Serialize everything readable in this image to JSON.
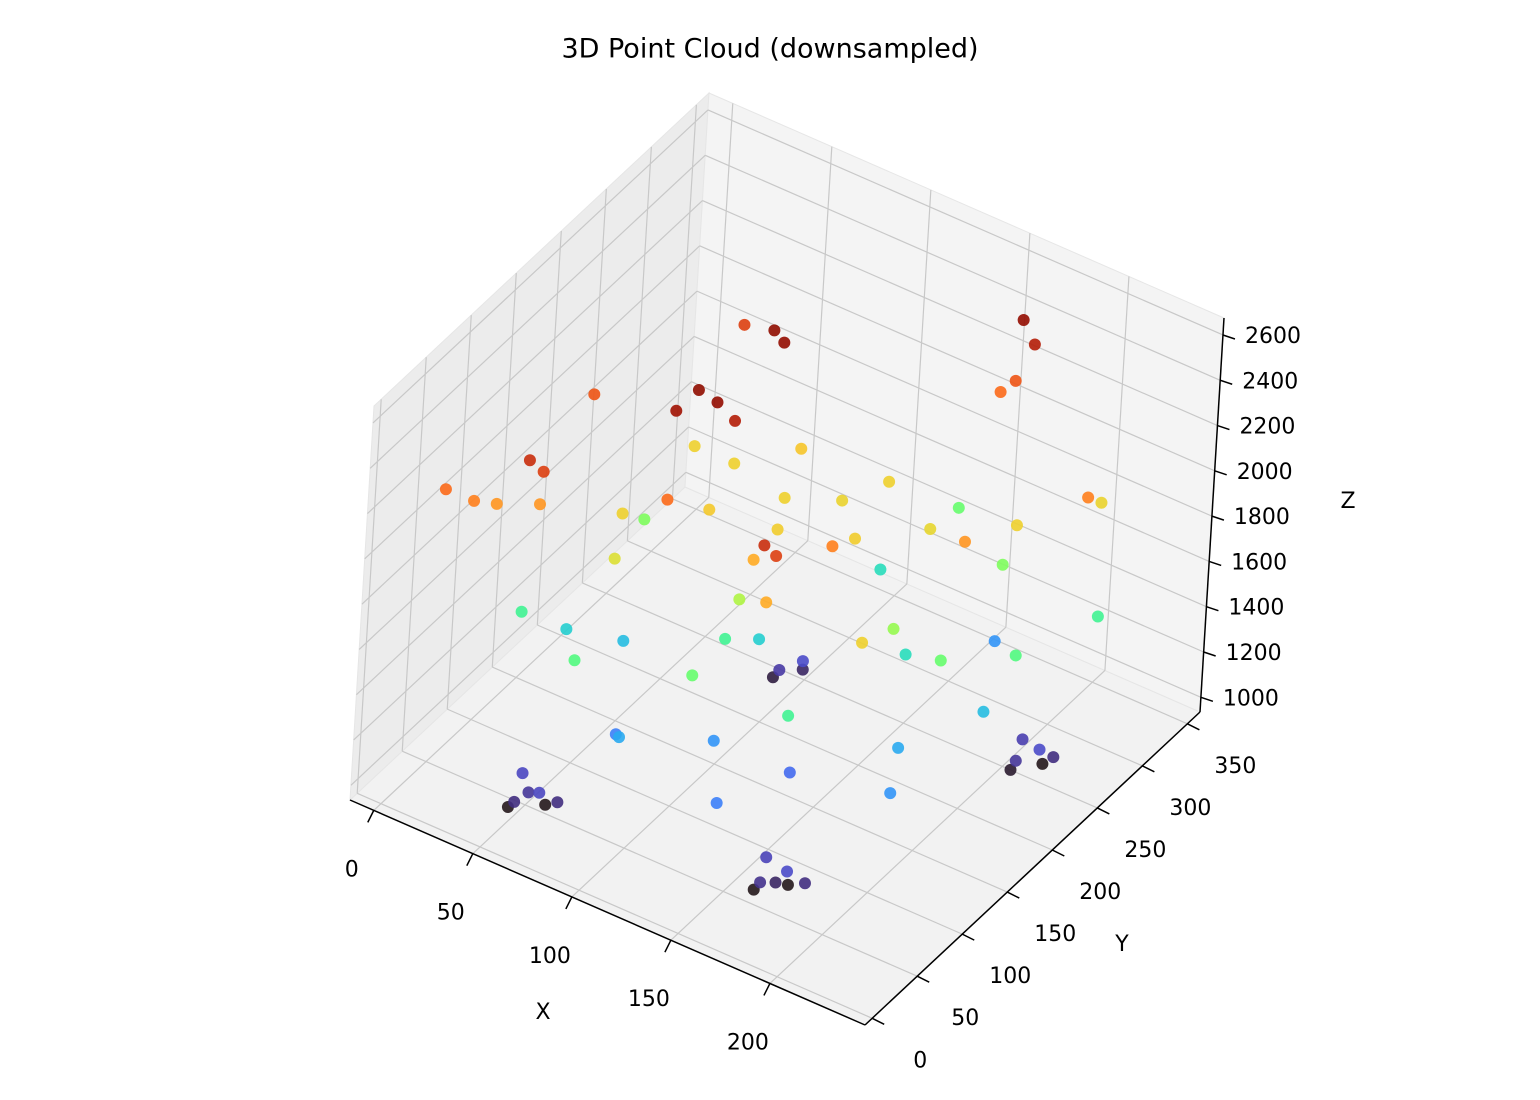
{
  "chart_data": {
    "type": "scatter3d",
    "title": "3D Point Cloud (downsampled)",
    "x_label": "X",
    "y_label": "Y",
    "z_label": "Z",
    "xlim": [
      -12,
      248
    ],
    "ylim": [
      -8,
      364
    ],
    "zlim": [
      935,
      2675
    ],
    "xticks": [
      0,
      50,
      100,
      150,
      200
    ],
    "yticks": [
      0,
      50,
      100,
      150,
      200,
      250,
      300,
      350
    ],
    "zticks": [
      1000,
      1200,
      1400,
      1600,
      1800,
      2000,
      2200,
      2400,
      2600
    ],
    "grid": true,
    "colormap": "turbo",
    "points": [
      [
        50,
        30,
        1000
      ],
      [
        55,
        25,
        1060
      ],
      [
        65,
        30,
        1120
      ],
      [
        70,
        40,
        1060
      ],
      [
        62,
        45,
        1000
      ],
      [
        52,
        40,
        1120
      ],
      [
        58,
        34,
        1080
      ],
      [
        165,
        50,
        1000
      ],
      [
        170,
        45,
        1070
      ],
      [
        180,
        52,
        1130
      ],
      [
        185,
        62,
        1060
      ],
      [
        175,
        66,
        1000
      ],
      [
        166,
        60,
        1110
      ],
      [
        173,
        56,
        1040
      ],
      [
        210,
        236,
        1010
      ],
      [
        214,
        232,
        1080
      ],
      [
        222,
        240,
        1130
      ],
      [
        224,
        252,
        1060
      ],
      [
        218,
        254,
        1000
      ],
      [
        210,
        248,
        1100
      ],
      [
        95,
        225,
        1020
      ],
      [
        100,
        220,
        1090
      ],
      [
        108,
        228,
        1130
      ],
      [
        104,
        238,
        1040
      ],
      [
        80,
        80,
        1250
      ],
      [
        120,
        100,
        1300
      ],
      [
        150,
        120,
        1200
      ],
      [
        190,
        150,
        1350
      ],
      [
        60,
        130,
        1400
      ],
      [
        110,
        170,
        1450
      ],
      [
        170,
        200,
        1500
      ],
      [
        200,
        120,
        1300
      ],
      [
        140,
        60,
        1250
      ],
      [
        40,
        110,
        1450
      ],
      [
        210,
        200,
        1400
      ],
      [
        90,
        60,
        1350
      ],
      [
        130,
        260,
        1500
      ],
      [
        180,
        280,
        1300
      ],
      [
        30,
        80,
        1600
      ],
      [
        70,
        50,
        1650
      ],
      [
        120,
        70,
        1700
      ],
      [
        160,
        90,
        1600
      ],
      [
        200,
        170,
        1700
      ],
      [
        220,
        210,
        1650
      ],
      [
        190,
        260,
        1750
      ],
      [
        110,
        130,
        1600
      ],
      [
        50,
        170,
        1750
      ],
      [
        150,
        300,
        1700
      ],
      [
        230,
        280,
        1600
      ],
      [
        60,
        120,
        2000
      ],
      [
        90,
        150,
        2020
      ],
      [
        110,
        190,
        2000
      ],
      [
        130,
        210,
        1990
      ],
      [
        150,
        180,
        2010
      ],
      [
        100,
        230,
        2030
      ],
      [
        80,
        200,
        2000
      ],
      [
        140,
        240,
        2000
      ],
      [
        170,
        220,
        1980
      ],
      [
        120,
        160,
        2010
      ],
      [
        200,
        250,
        2000
      ],
      [
        220,
        300,
        1990
      ],
      [
        60,
        200,
        2000
      ],
      [
        20,
        40,
        2200
      ],
      [
        40,
        70,
        2150
      ],
      [
        90,
        100,
        2250
      ],
      [
        130,
        110,
        2100
      ],
      [
        160,
        130,
        2200
      ],
      [
        200,
        190,
        2150
      ],
      [
        230,
        260,
        2200
      ],
      [
        170,
        310,
        2300
      ],
      [
        165,
        305,
        2250
      ],
      [
        60,
        250,
        2350
      ],
      [
        30,
        150,
        2300
      ],
      [
        150,
        80,
        2100
      ],
      [
        190,
        100,
        2000
      ],
      [
        88,
        134,
        2600
      ],
      [
        95,
        140,
        2550
      ],
      [
        80,
        128,
        2500
      ],
      [
        100,
        150,
        2450
      ],
      [
        40,
        55,
        2400
      ],
      [
        45,
        60,
        2350
      ],
      [
        152,
        69,
        2400
      ],
      [
        156,
        74,
        2350
      ],
      [
        92,
        209,
        2600
      ],
      [
        96,
        212,
        2550
      ],
      [
        170,
        315,
        2550
      ],
      [
        175,
        318,
        2450
      ],
      [
        10,
        30,
        2250
      ],
      [
        25,
        55,
        2150
      ],
      [
        70,
        90,
        1950
      ],
      [
        120,
        120,
        1850
      ],
      [
        180,
        160,
        1800
      ]
    ]
  }
}
